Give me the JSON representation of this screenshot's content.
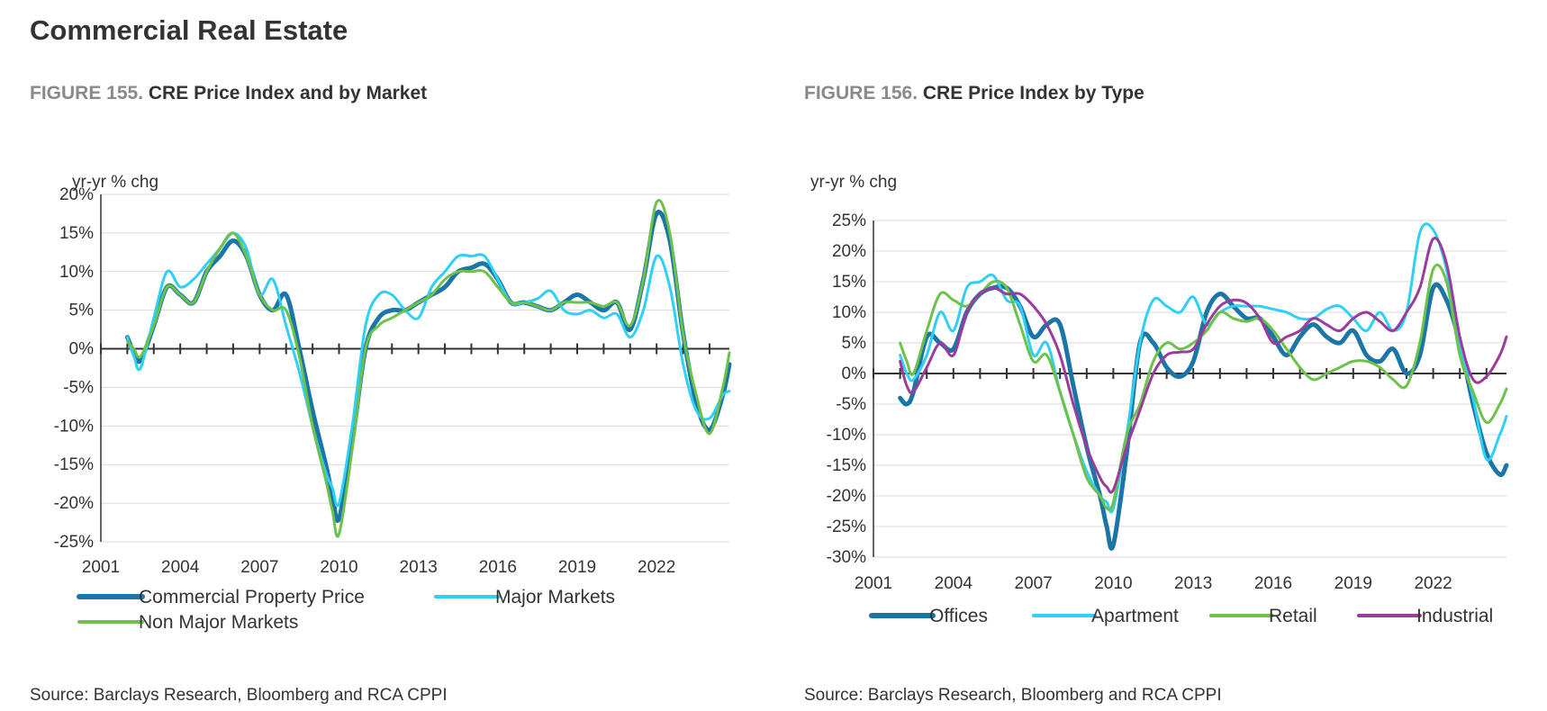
{
  "page": {
    "title": "Commercial Real Estate"
  },
  "figures": [
    {
      "number": "FIGURE 155.",
      "title": "CRE Price Index and by Market",
      "source": "Source: Barclays Research, Bloomberg and RCA CPPI"
    },
    {
      "number": "FIGURE 156.",
      "title": "CRE Price Index by Type",
      "source": "Source: Barclays Research, Bloomberg and RCA CPPI"
    }
  ],
  "colors": {
    "dark_blue": "#1b75a7",
    "light_blue": "#2fd0f5",
    "green": "#6cc24a",
    "purple": "#9b3b9b"
  },
  "chart_data": [
    {
      "type": "line",
      "title": "CRE Price Index and by Market",
      "ylabel": "yr-yr % chg",
      "ylim": [
        -25,
        20
      ],
      "yticks": [
        20,
        15,
        10,
        5,
        0,
        -5,
        -10,
        -15,
        -20,
        -25
      ],
      "ytick_labels": [
        "20%",
        "15%",
        "10%",
        "5%",
        "0%",
        "-5%",
        "-10%",
        "-15%",
        "-20%",
        "-25%"
      ],
      "xlim": [
        2001.0,
        2024.75
      ],
      "xticks": [
        2001,
        2004,
        2007,
        2010,
        2013,
        2016,
        2019,
        2022
      ],
      "xtick_labels": [
        "2001",
        "2004",
        "2007",
        "2010",
        "2013",
        "2016",
        "2019",
        "2022"
      ],
      "grid": true,
      "legend_position": "bottom",
      "series": [
        {
          "name": "Commercial Property Price",
          "color": "#1b75a7",
          "width": 5,
          "x": [
            2002.0,
            2002.25,
            2002.5,
            2003.0,
            2003.5,
            2004.0,
            2004.5,
            2005.0,
            2005.5,
            2006.0,
            2006.5,
            2007.0,
            2007.5,
            2008.0,
            2008.5,
            2009.0,
            2009.5,
            2009.75,
            2010.0,
            2010.5,
            2011.0,
            2011.5,
            2012.0,
            2012.5,
            2013.0,
            2013.5,
            2014.0,
            2014.5,
            2015.0,
            2015.5,
            2016.0,
            2016.5,
            2017.0,
            2017.5,
            2018.0,
            2018.5,
            2019.0,
            2019.5,
            2020.0,
            2020.5,
            2021.0,
            2021.5,
            2022.0,
            2022.5,
            2023.0,
            2023.5,
            2024.0,
            2024.5,
            2024.75
          ],
          "y": [
            1.5,
            -0.5,
            -1.5,
            3,
            8,
            7,
            6,
            10,
            12,
            14,
            12,
            7,
            5,
            7,
            0,
            -8,
            -15,
            -19,
            -22,
            -12,
            0,
            4,
            5,
            5,
            6,
            7,
            8,
            10,
            10.5,
            11,
            9,
            6,
            6,
            5.5,
            5,
            6,
            7,
            6,
            5,
            6,
            2.5,
            9,
            17.5,
            14,
            2,
            -7,
            -10.5,
            -6,
            -2
          ]
        },
        {
          "name": "Major Markets",
          "color": "#2fd0f5",
          "width": 3,
          "x": [
            2002.0,
            2002.25,
            2002.5,
            2003.0,
            2003.5,
            2004.0,
            2004.5,
            2005.0,
            2005.5,
            2006.0,
            2006.5,
            2007.0,
            2007.5,
            2008.0,
            2008.5,
            2009.0,
            2009.5,
            2009.75,
            2010.0,
            2010.5,
            2011.0,
            2011.5,
            2012.0,
            2012.5,
            2013.0,
            2013.5,
            2014.0,
            2014.5,
            2015.0,
            2015.5,
            2016.0,
            2016.5,
            2017.0,
            2017.5,
            2018.0,
            2018.5,
            2019.0,
            2019.5,
            2020.0,
            2020.5,
            2021.0,
            2021.5,
            2022.0,
            2022.5,
            2023.0,
            2023.5,
            2024.0,
            2024.5,
            2024.75
          ],
          "y": [
            1.5,
            -1,
            -2.5,
            4,
            10,
            8,
            9,
            11,
            13,
            15,
            13,
            7,
            9,
            3,
            -3,
            -10,
            -16,
            -18,
            -20,
            -10,
            3,
            7,
            7,
            5,
            4,
            8,
            10,
            12,
            12,
            12,
            9,
            6,
            6,
            6.5,
            7.5,
            5,
            4.5,
            5,
            4,
            4.5,
            1.5,
            5,
            12,
            8,
            -2,
            -8,
            -9,
            -6,
            -5.5
          ]
        },
        {
          "name": "Non Major Markets",
          "color": "#6cc24a",
          "width": 3,
          "x": [
            2002.0,
            2002.25,
            2002.5,
            2003.0,
            2003.5,
            2004.0,
            2004.5,
            2005.0,
            2005.5,
            2006.0,
            2006.5,
            2007.0,
            2007.5,
            2008.0,
            2008.5,
            2009.0,
            2009.5,
            2009.75,
            2010.0,
            2010.5,
            2011.0,
            2011.5,
            2012.0,
            2012.5,
            2013.0,
            2013.5,
            2014.0,
            2014.5,
            2015.0,
            2015.5,
            2016.0,
            2016.5,
            2017.0,
            2017.5,
            2018.0,
            2018.5,
            2019.0,
            2019.5,
            2020.0,
            2020.5,
            2021.0,
            2021.5,
            2022.0,
            2022.5,
            2023.0,
            2023.5,
            2024.0,
            2024.5,
            2024.75
          ],
          "y": [
            1,
            0,
            -1,
            3,
            8,
            7,
            6,
            10,
            13,
            15,
            12,
            7,
            5,
            5,
            -1,
            -10,
            -17,
            -21,
            -24,
            -13,
            0,
            3,
            4,
            5,
            6,
            7,
            9,
            10,
            10,
            10,
            8,
            6,
            6,
            5.5,
            5,
            6,
            6,
            6,
            5.5,
            6,
            3,
            9,
            19,
            15,
            2,
            -6,
            -11,
            -5,
            -0.5
          ]
        }
      ]
    },
    {
      "type": "line",
      "title": "CRE Price Index by Type",
      "ylabel": "yr-yr % chg",
      "ylim": [
        -30,
        25
      ],
      "yticks": [
        25,
        20,
        15,
        10,
        5,
        0,
        -5,
        -10,
        -15,
        -20,
        -25,
        -30
      ],
      "ytick_labels": [
        "25%",
        "20%",
        "15%",
        "10%",
        "5%",
        "0%",
        "-5%",
        "-10%",
        "-15%",
        "-20%",
        "-25%",
        "-30%"
      ],
      "xlim": [
        2001.0,
        2024.75
      ],
      "xticks": [
        2001,
        2004,
        2007,
        2010,
        2013,
        2016,
        2019,
        2022
      ],
      "xtick_labels": [
        "2001",
        "2004",
        "2007",
        "2010",
        "2013",
        "2016",
        "2019",
        "2022"
      ],
      "grid": true,
      "legend_position": "bottom",
      "series": [
        {
          "name": "Offices",
          "color": "#1b75a7",
          "width": 5,
          "x": [
            2002.0,
            2002.25,
            2002.5,
            2003.0,
            2003.5,
            2004.0,
            2004.5,
            2005.0,
            2005.5,
            2006.0,
            2006.5,
            2007.0,
            2007.5,
            2008.0,
            2008.5,
            2009.0,
            2009.5,
            2009.75,
            2010.0,
            2010.5,
            2011.0,
            2011.5,
            2012.0,
            2012.5,
            2013.0,
            2013.5,
            2014.0,
            2014.5,
            2015.0,
            2015.5,
            2016.0,
            2016.5,
            2017.0,
            2017.5,
            2018.0,
            2018.5,
            2019.0,
            2019.5,
            2020.0,
            2020.5,
            2021.0,
            2021.5,
            2022.0,
            2022.5,
            2023.0,
            2023.5,
            2024.0,
            2024.5,
            2024.75
          ],
          "y": [
            -4,
            -5,
            -3,
            6,
            5,
            4,
            10,
            13,
            14,
            14,
            11,
            6,
            8,
            8,
            -2,
            -12,
            -20,
            -25,
            -28,
            -13,
            5,
            5,
            1,
            -0.5,
            2,
            10,
            13,
            11,
            9,
            9,
            6,
            3,
            6,
            8,
            6,
            5,
            7,
            3,
            2,
            4,
            0,
            3,
            14,
            12,
            5,
            -5,
            -13,
            -16.5,
            -15
          ]
        },
        {
          "name": "Apartment",
          "color": "#2fd0f5",
          "width": 3,
          "x": [
            2002.0,
            2002.25,
            2002.5,
            2003.0,
            2003.5,
            2004.0,
            2004.5,
            2005.0,
            2005.5,
            2006.0,
            2006.5,
            2007.0,
            2007.5,
            2008.0,
            2008.5,
            2009.0,
            2009.5,
            2009.75,
            2010.0,
            2010.5,
            2011.0,
            2011.5,
            2012.0,
            2012.5,
            2013.0,
            2013.5,
            2014.0,
            2014.5,
            2015.0,
            2015.5,
            2016.0,
            2016.5,
            2017.0,
            2017.5,
            2018.0,
            2018.5,
            2019.0,
            2019.5,
            2020.0,
            2020.5,
            2021.0,
            2021.5,
            2022.0,
            2022.5,
            2023.0,
            2023.5,
            2024.0,
            2024.5,
            2024.75
          ],
          "y": [
            3,
            0,
            -1,
            3,
            10,
            7,
            14,
            15,
            16,
            12,
            11,
            3,
            5,
            -3,
            -10,
            -16,
            -20,
            -21,
            -22,
            -10,
            5,
            12,
            11,
            10,
            12.5,
            8,
            10,
            11,
            11,
            11,
            10.5,
            10,
            9,
            9,
            10.5,
            11,
            9,
            7,
            10,
            7,
            10,
            23,
            23.5,
            17,
            5,
            -4,
            -14,
            -10,
            -7
          ]
        },
        {
          "name": "Retail",
          "color": "#6cc24a",
          "width": 3,
          "x": [
            2002.0,
            2002.25,
            2002.5,
            2003.0,
            2003.5,
            2004.0,
            2004.5,
            2005.0,
            2005.5,
            2006.0,
            2006.5,
            2007.0,
            2007.5,
            2008.0,
            2008.5,
            2009.0,
            2009.5,
            2009.75,
            2010.0,
            2010.5,
            2011.0,
            2011.5,
            2012.0,
            2012.5,
            2013.0,
            2013.5,
            2014.0,
            2014.5,
            2015.0,
            2015.5,
            2016.0,
            2016.5,
            2017.0,
            2017.5,
            2018.0,
            2018.5,
            2019.0,
            2019.5,
            2020.0,
            2020.5,
            2021.0,
            2021.5,
            2022.0,
            2022.5,
            2023.0,
            2023.5,
            2024.0,
            2024.5,
            2024.75
          ],
          "y": [
            5,
            2,
            0,
            7,
            13,
            12,
            11,
            13,
            15,
            14,
            8,
            2,
            3,
            -3,
            -10,
            -17,
            -20,
            -22,
            -21,
            -10,
            -5,
            2,
            5,
            4,
            5,
            7,
            10,
            9,
            8.5,
            9,
            7,
            4,
            1,
            -1,
            0,
            1,
            2,
            2,
            1,
            -1,
            -2,
            5,
            17,
            15,
            3,
            -3,
            -8,
            -5,
            -2.5
          ]
        },
        {
          "name": "Industrial",
          "color": "#9b3b9b",
          "width": 3,
          "x": [
            2002.0,
            2002.25,
            2002.5,
            2003.0,
            2003.5,
            2004.0,
            2004.5,
            2005.0,
            2005.5,
            2006.0,
            2006.5,
            2007.0,
            2007.5,
            2008.0,
            2008.5,
            2009.0,
            2009.5,
            2009.75,
            2010.0,
            2010.5,
            2011.0,
            2011.5,
            2012.0,
            2012.5,
            2013.0,
            2013.5,
            2014.0,
            2014.5,
            2015.0,
            2015.5,
            2016.0,
            2016.5,
            2017.0,
            2017.5,
            2018.0,
            2018.5,
            2019.0,
            2019.5,
            2020.0,
            2020.5,
            2021.0,
            2021.5,
            2022.0,
            2022.5,
            2023.0,
            2023.5,
            2024.0,
            2024.5,
            2024.75
          ],
          "y": [
            2,
            -2,
            -3,
            1,
            5,
            3,
            10,
            13,
            14,
            13,
            13,
            11,
            8,
            3,
            -5,
            -12,
            -17,
            -18.5,
            -19,
            -12,
            -6,
            0,
            3,
            3.5,
            4,
            8,
            11,
            12,
            11.5,
            9,
            5,
            6,
            7,
            9,
            8,
            7,
            9,
            10,
            8.5,
            7,
            10,
            14,
            22,
            18,
            6,
            -1,
            -0.5,
            3,
            6
          ]
        }
      ]
    }
  ]
}
